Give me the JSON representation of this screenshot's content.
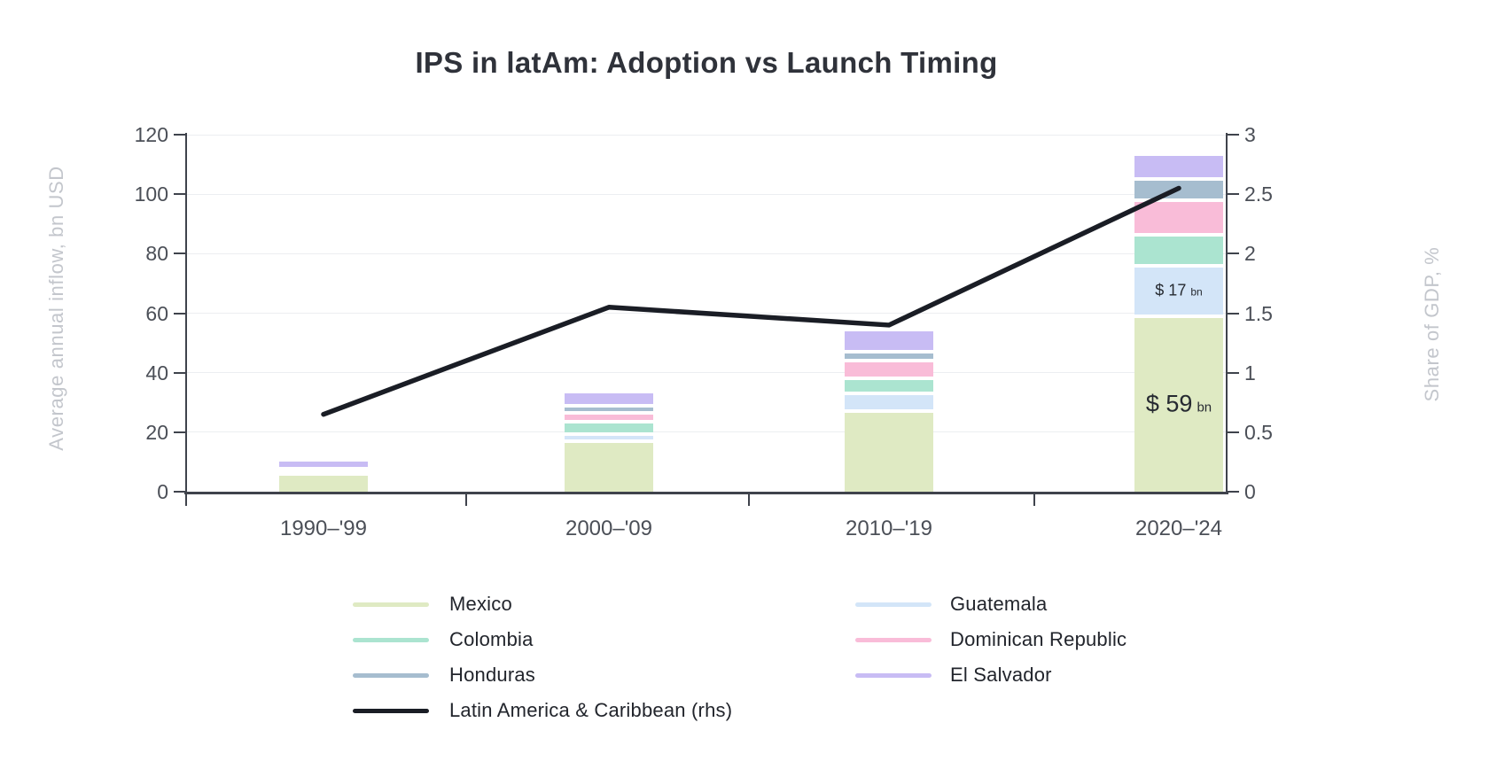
{
  "title": "IPS in latAm: Adoption vs Launch Timing",
  "chart_data": {
    "type": "bar+line",
    "subtype": "stacked-column with secondary-axis line",
    "categories": [
      "1990–'99",
      "2000–'09",
      "2010–'19",
      "2020–'24"
    ],
    "stacked_bar_series": [
      {
        "name": "Mexico",
        "color": "#dfeac3",
        "values": [
          6,
          17,
          27,
          59
        ]
      },
      {
        "name": "Guatemala",
        "color": "#d3e5f8",
        "values": [
          0.4,
          2.5,
          6,
          17
        ]
      },
      {
        "name": "Colombia",
        "color": "#abe4d0",
        "values": [
          0.4,
          4,
          5,
          10.5
        ]
      },
      {
        "name": "Dominican Republic",
        "color": "#f9bcd8",
        "values": [
          0.4,
          3,
          6,
          11.5
        ]
      },
      {
        "name": "Honduras",
        "color": "#a6bdcf",
        "values": [
          0.5,
          2.5,
          3,
          7
        ]
      },
      {
        "name": "El Salvador",
        "color": "#c8bcf4",
        "values": [
          2.5,
          4,
          7,
          8
        ]
      }
    ],
    "line_series": {
      "name": "Latin America & Caribbean (rhs)",
      "color": "#1a1d25",
      "axis": "right",
      "values": [
        0.65,
        1.55,
        1.4,
        2.55
      ]
    },
    "left_axis": {
      "title": "Average annual inflow, bn USD",
      "range": [
        0,
        120
      ],
      "ticks": [
        {
          "v": 0,
          "label": "0"
        },
        {
          "v": 20,
          "label": "20"
        },
        {
          "v": 40,
          "label": "40"
        },
        {
          "v": 60,
          "label": "60"
        },
        {
          "v": 80,
          "label": "80"
        },
        {
          "v": 100,
          "label": "100"
        },
        {
          "v": 120,
          "label": "120"
        }
      ]
    },
    "right_axis": {
      "title": "Share of GDP, %",
      "range": [
        0,
        3
      ],
      "ticks": [
        {
          "v": 0,
          "label": "0"
        },
        {
          "v": 0.5,
          "label": "0.5"
        },
        {
          "v": 1,
          "label": "1"
        },
        {
          "v": 1.5,
          "label": "1.5"
        },
        {
          "v": 2,
          "label": "2"
        },
        {
          "v": 2.5,
          "label": "2.5"
        },
        {
          "v": 3,
          "label": "3"
        }
      ]
    },
    "annotations": [
      {
        "category_index": 3,
        "series": "Guatemala",
        "value_text": "$ 17",
        "unit_text": "bn",
        "size": "small"
      },
      {
        "category_index": 3,
        "series": "Mexico",
        "value_text": "$ 59",
        "unit_text": "bn",
        "size": "large"
      }
    ],
    "grid": true,
    "legend_position": "bottom"
  },
  "legend": {
    "columns": [
      {
        "items": [
          {
            "label": "Mexico",
            "color": "#dfeac3",
            "type": "bar"
          },
          {
            "label": "Colombia",
            "color": "#abe4d0",
            "type": "bar"
          },
          {
            "label": "Honduras",
            "color": "#a6bdcf",
            "type": "bar"
          },
          {
            "label": "Latin America & Caribbean (rhs)",
            "color": "#1a1d25",
            "type": "line"
          }
        ]
      },
      {
        "items": [
          {
            "label": "Guatemala",
            "color": "#d3e5f8",
            "type": "bar"
          },
          {
            "label": "Dominican Republic",
            "color": "#f9bcd8",
            "type": "bar"
          },
          {
            "label": "El Salvador",
            "color": "#c8bcf4",
            "type": "bar"
          }
        ]
      }
    ]
  },
  "colors": {
    "background": "#ffffff",
    "axis_line": "#3f434c",
    "gridline": "#eceef1",
    "tick_label": "#4b4f57",
    "axis_title": "#c3c6cc",
    "title": "#2f323a",
    "annotation": "#262a31"
  }
}
